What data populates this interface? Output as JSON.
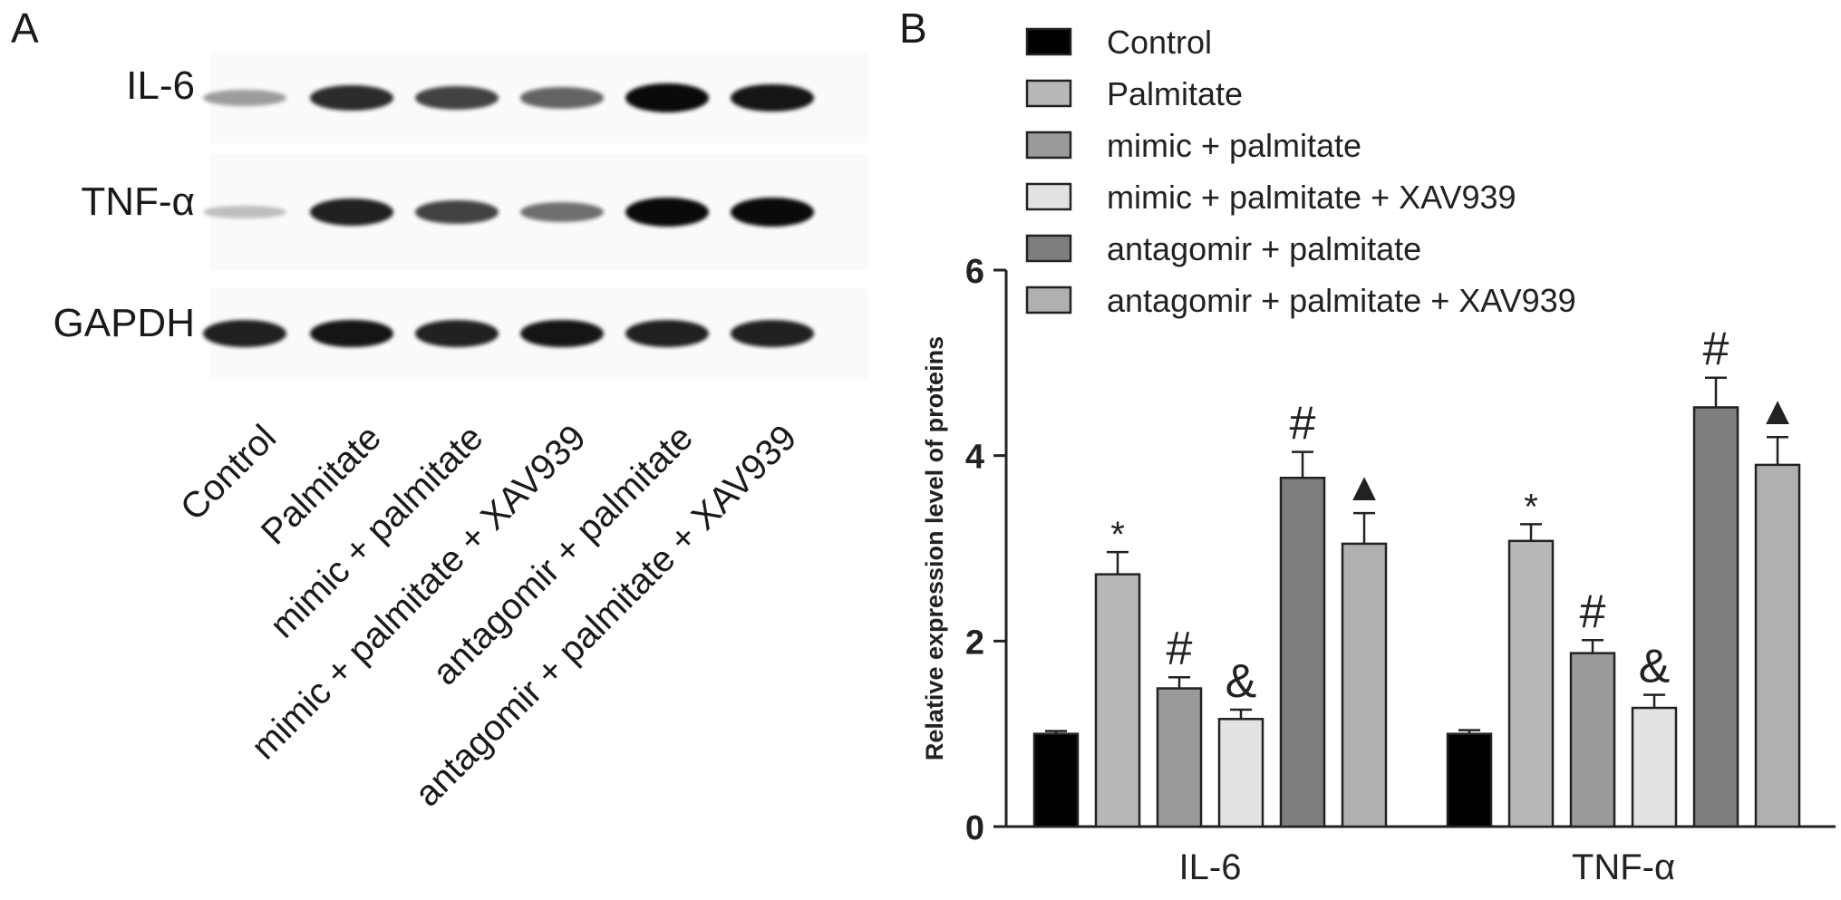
{
  "panel_a": {
    "letter": "A",
    "rows": [
      {
        "label": "IL-6",
        "intensity": [
          0.35,
          0.85,
          0.75,
          0.6,
          1.0,
          0.95
        ]
      },
      {
        "label": "TNF-α",
        "intensity": [
          0.2,
          0.9,
          0.75,
          0.55,
          1.0,
          1.0
        ]
      },
      {
        "label": "GAPDH",
        "intensity": [
          0.9,
          0.95,
          0.9,
          0.95,
          0.9,
          0.9
        ]
      }
    ],
    "lanes": [
      "Control",
      "Palmitate",
      "mimic + palmitate",
      "mimic + palmitate + XAV939",
      "antagomir + palmitate",
      "antagomir + palmitate + XAV939"
    ]
  },
  "panel_b": {
    "letter": "B"
  },
  "chart_data": {
    "type": "bar",
    "title": "",
    "xlabel": "",
    "ylabel": "Relative expression level of proteins",
    "ylim": [
      0,
      6
    ],
    "yticks": [
      "0",
      "2",
      "4",
      "6"
    ],
    "categories": [
      "IL-6",
      "TNF-α"
    ],
    "legend_position": "top",
    "series": [
      {
        "name": "Control",
        "color": "#000000",
        "values": [
          1.0,
          1.0
        ],
        "errors": [
          0.03,
          0.04
        ],
        "annotations": [
          "",
          ""
        ]
      },
      {
        "name": "Palmitate",
        "color": "#b8b8b8",
        "values": [
          2.72,
          3.08
        ],
        "errors": [
          0.24,
          0.18
        ],
        "annotations": [
          "*",
          "*"
        ]
      },
      {
        "name": "mimic + palmitate",
        "color": "#9a9a9a",
        "values": [
          1.49,
          1.87
        ],
        "errors": [
          0.12,
          0.14
        ],
        "annotations": [
          "#",
          "#"
        ]
      },
      {
        "name": "mimic + palmitate + XAV939",
        "color": "#e2e2e2",
        "values": [
          1.16,
          1.28
        ],
        "errors": [
          0.1,
          0.14
        ],
        "annotations": [
          "&",
          "&"
        ]
      },
      {
        "name": "antagomir + palmitate",
        "color": "#7e7e7e",
        "values": [
          3.76,
          4.52
        ],
        "errors": [
          0.28,
          0.32
        ],
        "annotations": [
          "#",
          "#"
        ]
      },
      {
        "name": "antagomir + palmitate + XAV939",
        "color": "#b0b0b0",
        "values": [
          3.05,
          3.9
        ],
        "errors": [
          0.33,
          0.3
        ],
        "annotations": [
          "▲",
          "▲"
        ]
      }
    ]
  }
}
